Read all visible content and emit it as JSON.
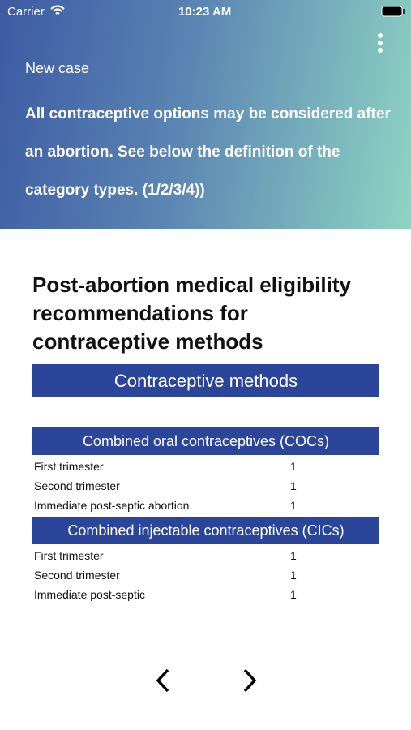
{
  "status_bar": {
    "carrier": "Carrier",
    "time": "10:23 AM"
  },
  "header": {
    "label": "New case",
    "description": "All contraceptive options may be considered after an abortion. See below the definition of the category types. (1/2/3/4))"
  },
  "content": {
    "title": "Post-abortion medical eligibility recommendations for contraceptive methods",
    "table_heading": "Contraceptive methods",
    "sections": [
      {
        "name": "Combined oral contraceptives (COCs)",
        "rows": [
          [
            "First trimester",
            1
          ],
          [
            "Second trimester",
            1
          ],
          [
            "Immediate post-septic abortion",
            1
          ]
        ]
      },
      {
        "name": "Combined injectable contraceptives (CICs)",
        "rows": [
          [
            "First trimester",
            1
          ],
          [
            "Second trimester",
            1
          ],
          [
            "Immediate post-septic",
            1
          ]
        ]
      }
    ]
  }
}
